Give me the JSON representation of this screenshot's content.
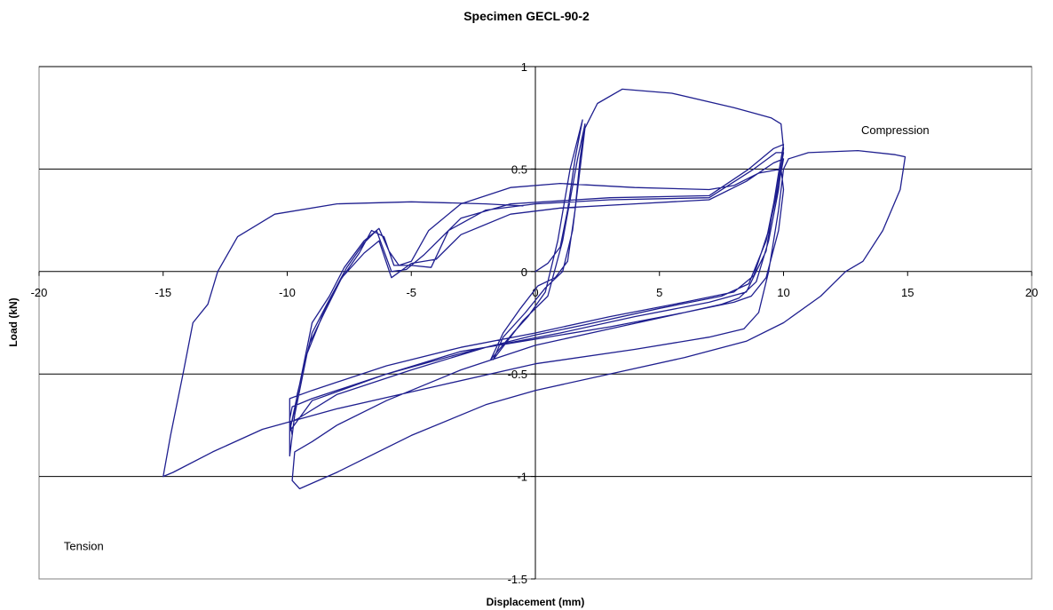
{
  "chart_data": {
    "type": "line",
    "title": "Specimen GECL-90-2",
    "xlabel": "Displacement (mm)",
    "ylabel": "Load (kN)",
    "xlim": [
      -20,
      20
    ],
    "ylim": [
      -1.5,
      1
    ],
    "xticks": [
      -20,
      -15,
      -10,
      -5,
      0,
      5,
      10,
      15,
      20
    ],
    "yticks": [
      -1.5,
      -1,
      -0.5,
      0,
      0.5,
      1
    ],
    "xtick_labels": [
      "-20",
      "-15",
      "-10",
      "-5",
      "0",
      "5",
      "10",
      "15",
      "20"
    ],
    "ytick_labels": [
      "-1.5",
      "-1",
      "-0.5",
      "0",
      "0.5",
      "1"
    ],
    "gridlines": "horizontal",
    "line_color": "#1f1f8f",
    "annotations": [
      {
        "text": "Compression",
        "x": 14.5,
        "y": 0.67
      },
      {
        "text": "Tension",
        "x": -18.2,
        "y": -1.36
      }
    ],
    "series": [
      {
        "values": [
          [
            0,
            0
          ],
          [
            0.5,
            0.04
          ],
          [
            1.0,
            0.12
          ],
          [
            1.3,
            0.3
          ],
          [
            1.6,
            0.55
          ],
          [
            1.9,
            0.74
          ],
          [
            1.4,
            0.5
          ],
          [
            0.9,
            0.15
          ],
          [
            0.4,
            -0.1
          ],
          [
            -0.3,
            -0.22
          ],
          [
            -0.9,
            -0.3
          ],
          [
            -1.8,
            -0.43
          ],
          [
            -1.3,
            -0.3
          ],
          [
            -0.6,
            -0.18
          ],
          [
            0.1,
            -0.07
          ],
          [
            0.8,
            -0.03
          ],
          [
            1.3,
            0.05
          ],
          [
            1.6,
            0.3
          ],
          [
            1.8,
            0.55
          ],
          [
            2.0,
            0.72
          ],
          [
            1.7,
            0.55
          ],
          [
            1.1,
            0.15
          ],
          [
            0.5,
            -0.12
          ],
          [
            -0.5,
            -0.24
          ],
          [
            -1.7,
            -0.43
          ],
          [
            -1.3,
            -0.32
          ],
          [
            -0.4,
            -0.2
          ],
          [
            0.4,
            -0.08
          ],
          [
            1.1,
            0.0
          ],
          [
            1.5,
            0.2
          ],
          [
            1.8,
            0.5
          ],
          [
            2.0,
            0.7
          ],
          [
            2.5,
            0.82
          ],
          [
            3.5,
            0.89
          ],
          [
            5.5,
            0.87
          ],
          [
            8.0,
            0.8
          ],
          [
            9.5,
            0.75
          ],
          [
            9.9,
            0.72
          ],
          [
            10.0,
            0.6
          ],
          [
            9.8,
            0.4
          ],
          [
            9.4,
            0.15
          ],
          [
            8.9,
            -0.05
          ],
          [
            8.2,
            -0.13
          ],
          [
            7.5,
            -0.16
          ],
          [
            6.0,
            -0.2
          ],
          [
            3.0,
            -0.27
          ],
          [
            0,
            -0.33
          ],
          [
            -3.0,
            -0.39
          ],
          [
            -6.0,
            -0.5
          ],
          [
            -9.0,
            -0.62
          ],
          [
            -9.8,
            -0.66
          ],
          [
            -9.9,
            -0.72
          ],
          [
            -9.8,
            -0.8
          ],
          [
            -9.6,
            -0.6
          ],
          [
            -9.1,
            -0.35
          ],
          [
            -8.5,
            -0.2
          ],
          [
            -7.8,
            -0.03
          ],
          [
            -6.9,
            0.09
          ],
          [
            -6.3,
            0.15
          ],
          [
            -5.8,
            -0.03
          ],
          [
            -5.0,
            0.04
          ],
          [
            -4.0,
            0.06
          ],
          [
            -3.0,
            0.18
          ],
          [
            -1.0,
            0.28
          ],
          [
            1.0,
            0.31
          ],
          [
            4.0,
            0.33
          ],
          [
            7.0,
            0.35
          ],
          [
            8.5,
            0.44
          ],
          [
            9.6,
            0.53
          ],
          [
            10.0,
            0.55
          ],
          [
            9.8,
            0.42
          ],
          [
            9.4,
            0.2
          ],
          [
            8.8,
            -0.02
          ],
          [
            8.0,
            -0.1
          ],
          [
            6.0,
            -0.15
          ],
          [
            3.0,
            -0.22
          ],
          [
            0,
            -0.3
          ],
          [
            -3.0,
            -0.37
          ],
          [
            -6.0,
            -0.46
          ],
          [
            -9.0,
            -0.58
          ],
          [
            -9.9,
            -0.62
          ],
          [
            -9.9,
            -0.9
          ],
          [
            -9.7,
            -0.7
          ],
          [
            -9.2,
            -0.4
          ],
          [
            -8.6,
            -0.22
          ],
          [
            -7.9,
            -0.05
          ],
          [
            -7.1,
            0.09
          ],
          [
            -6.6,
            0.2
          ],
          [
            -6.1,
            0.17
          ],
          [
            -5.7,
            0.03
          ],
          [
            -5.0,
            0.03
          ],
          [
            -4.2,
            0.02
          ],
          [
            -3.5,
            0.2
          ],
          [
            -2.0,
            0.3
          ],
          [
            0,
            0.33
          ],
          [
            3.0,
            0.35
          ],
          [
            7.0,
            0.36
          ],
          [
            8.8,
            0.5
          ],
          [
            9.7,
            0.58
          ],
          [
            10.0,
            0.58
          ],
          [
            9.8,
            0.45
          ],
          [
            9.3,
            0.15
          ],
          [
            8.6,
            -0.06
          ],
          [
            7.5,
            -0.12
          ],
          [
            5.0,
            -0.18
          ],
          [
            2.0,
            -0.26
          ],
          [
            0,
            -0.31
          ],
          [
            -3.0,
            -0.4
          ],
          [
            -6.0,
            -0.5
          ],
          [
            -9.0,
            -0.63
          ],
          [
            -9.9,
            -0.78
          ],
          [
            -9.5,
            -0.55
          ],
          [
            -9.0,
            -0.3
          ],
          [
            -8.4,
            -0.16
          ],
          [
            -7.6,
            0.02
          ],
          [
            -6.9,
            0.14
          ],
          [
            -6.4,
            0.2
          ],
          [
            -5.8,
            0.0
          ],
          [
            -5.2,
            0.01
          ],
          [
            -4.5,
            0.08
          ],
          [
            -3.0,
            0.26
          ],
          [
            -1.0,
            0.33
          ],
          [
            3.0,
            0.36
          ],
          [
            7.0,
            0.37
          ],
          [
            8.6,
            0.5
          ],
          [
            9.6,
            0.6
          ],
          [
            10.0,
            0.62
          ],
          [
            9.8,
            0.48
          ],
          [
            9.3,
            0.1
          ],
          [
            8.5,
            -0.1
          ],
          [
            7.0,
            -0.15
          ],
          [
            4.0,
            -0.22
          ],
          [
            1.0,
            -0.3
          ],
          [
            -2.0,
            -0.37
          ],
          [
            -5.0,
            -0.48
          ],
          [
            -8.0,
            -0.6
          ],
          [
            -9.6,
            -0.72
          ],
          [
            -9.8,
            -0.73
          ],
          [
            -9.5,
            -0.55
          ],
          [
            -9.0,
            -0.25
          ],
          [
            -8.3,
            -0.12
          ],
          [
            -7.7,
            0.02
          ],
          [
            -6.9,
            0.15
          ],
          [
            -6.3,
            0.21
          ],
          [
            -5.9,
            0.1
          ],
          [
            -5.5,
            0.03
          ],
          [
            -5.0,
            0.05
          ],
          [
            -4.3,
            0.2
          ],
          [
            -3.0,
            0.33
          ],
          [
            -1.0,
            0.41
          ],
          [
            1.0,
            0.43
          ],
          [
            4.0,
            0.41
          ],
          [
            7.0,
            0.4
          ],
          [
            8.0,
            0.42
          ],
          [
            9.0,
            0.48
          ],
          [
            9.9,
            0.5
          ],
          [
            10.0,
            0.4
          ],
          [
            9.8,
            0.2
          ],
          [
            9.3,
            -0.03
          ],
          [
            8.7,
            -0.12
          ],
          [
            8.0,
            -0.15
          ],
          [
            6.0,
            -0.2
          ],
          [
            3.0,
            -0.28
          ],
          [
            0,
            -0.36
          ],
          [
            -3.0,
            -0.48
          ],
          [
            -6.0,
            -0.63
          ],
          [
            -8.0,
            -0.75
          ],
          [
            -9.0,
            -0.83
          ],
          [
            -9.7,
            -0.88
          ],
          [
            -9.8,
            -1.02
          ],
          [
            -9.5,
            -1.06
          ],
          [
            -8.0,
            -0.98
          ],
          [
            -5.0,
            -0.8
          ],
          [
            -2.0,
            -0.65
          ],
          [
            0,
            -0.58
          ],
          [
            3.0,
            -0.5
          ],
          [
            6.0,
            -0.42
          ],
          [
            8.5,
            -0.34
          ],
          [
            10.0,
            -0.25
          ],
          [
            11.5,
            -0.12
          ],
          [
            12.5,
            0.0
          ],
          [
            13.2,
            0.05
          ],
          [
            14.0,
            0.2
          ],
          [
            14.7,
            0.4
          ],
          [
            14.9,
            0.56
          ],
          [
            14.5,
            0.57
          ],
          [
            13.0,
            0.59
          ],
          [
            11.0,
            0.58
          ],
          [
            10.2,
            0.55
          ],
          [
            10.0,
            0.5
          ],
          [
            9.8,
            0.3
          ],
          [
            9.4,
            0.0
          ],
          [
            9.0,
            -0.2
          ],
          [
            8.4,
            -0.28
          ],
          [
            7.0,
            -0.32
          ],
          [
            4.0,
            -0.38
          ],
          [
            0,
            -0.45
          ],
          [
            -4.0,
            -0.56
          ],
          [
            -8.0,
            -0.67
          ],
          [
            -11.0,
            -0.77
          ],
          [
            -13.0,
            -0.88
          ],
          [
            -14.6,
            -0.98
          ],
          [
            -15.0,
            -1.0
          ],
          [
            -14.7,
            -0.8
          ],
          [
            -14.2,
            -0.5
          ],
          [
            -13.8,
            -0.25
          ],
          [
            -13.2,
            -0.16
          ],
          [
            -12.8,
            0.0
          ],
          [
            -12.0,
            0.17
          ],
          [
            -10.5,
            0.28
          ],
          [
            -8.0,
            0.33
          ],
          [
            -5.0,
            0.34
          ],
          [
            -2.0,
            0.33
          ],
          [
            -0.5,
            0.32
          ]
        ]
      }
    ]
  }
}
